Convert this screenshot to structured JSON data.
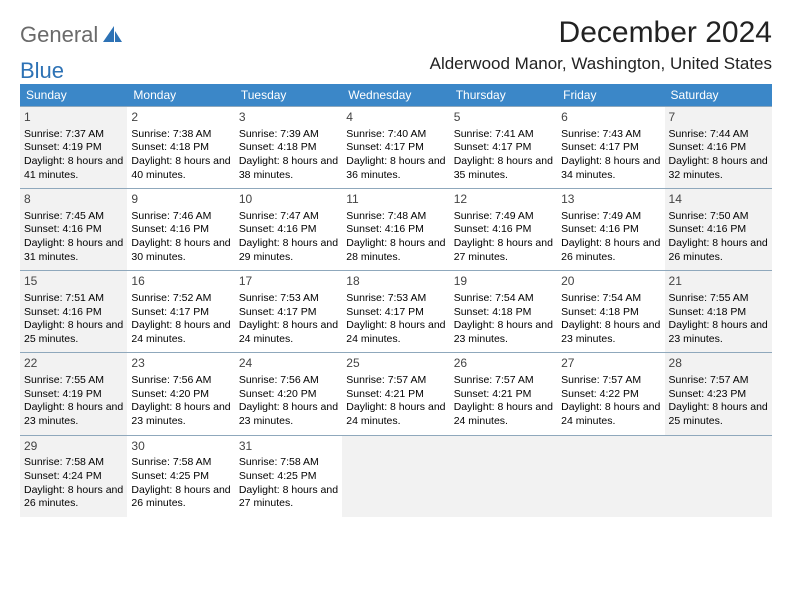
{
  "brand": {
    "word1": "General",
    "word2": "Blue",
    "accent_color": "#2d72b5",
    "gray_color": "#6a6a6a"
  },
  "header": {
    "month_title": "December 2024",
    "location": "Alderwood Manor, Washington, United States"
  },
  "day_headers": [
    "Sunday",
    "Monday",
    "Tuesday",
    "Wednesday",
    "Thursday",
    "Friday",
    "Saturday"
  ],
  "header_bg": "#3b87c8",
  "header_fg": "#ffffff",
  "cell_border": "#8fa8bc",
  "cell_shade": "#f2f2f2",
  "days": [
    {
      "n": 1,
      "sunrise": "7:37 AM",
      "sunset": "4:19 PM",
      "daylight": "8 hours and 41 minutes.",
      "shade": true
    },
    {
      "n": 2,
      "sunrise": "7:38 AM",
      "sunset": "4:18 PM",
      "daylight": "8 hours and 40 minutes.",
      "shade": false
    },
    {
      "n": 3,
      "sunrise": "7:39 AM",
      "sunset": "4:18 PM",
      "daylight": "8 hours and 38 minutes.",
      "shade": false
    },
    {
      "n": 4,
      "sunrise": "7:40 AM",
      "sunset": "4:17 PM",
      "daylight": "8 hours and 36 minutes.",
      "shade": false
    },
    {
      "n": 5,
      "sunrise": "7:41 AM",
      "sunset": "4:17 PM",
      "daylight": "8 hours and 35 minutes.",
      "shade": false
    },
    {
      "n": 6,
      "sunrise": "7:43 AM",
      "sunset": "4:17 PM",
      "daylight": "8 hours and 34 minutes.",
      "shade": false
    },
    {
      "n": 7,
      "sunrise": "7:44 AM",
      "sunset": "4:16 PM",
      "daylight": "8 hours and 32 minutes.",
      "shade": true
    },
    {
      "n": 8,
      "sunrise": "7:45 AM",
      "sunset": "4:16 PM",
      "daylight": "8 hours and 31 minutes.",
      "shade": true
    },
    {
      "n": 9,
      "sunrise": "7:46 AM",
      "sunset": "4:16 PM",
      "daylight": "8 hours and 30 minutes.",
      "shade": false
    },
    {
      "n": 10,
      "sunrise": "7:47 AM",
      "sunset": "4:16 PM",
      "daylight": "8 hours and 29 minutes.",
      "shade": false
    },
    {
      "n": 11,
      "sunrise": "7:48 AM",
      "sunset": "4:16 PM",
      "daylight": "8 hours and 28 minutes.",
      "shade": false
    },
    {
      "n": 12,
      "sunrise": "7:49 AM",
      "sunset": "4:16 PM",
      "daylight": "8 hours and 27 minutes.",
      "shade": false
    },
    {
      "n": 13,
      "sunrise": "7:49 AM",
      "sunset": "4:16 PM",
      "daylight": "8 hours and 26 minutes.",
      "shade": false
    },
    {
      "n": 14,
      "sunrise": "7:50 AM",
      "sunset": "4:16 PM",
      "daylight": "8 hours and 26 minutes.",
      "shade": true
    },
    {
      "n": 15,
      "sunrise": "7:51 AM",
      "sunset": "4:16 PM",
      "daylight": "8 hours and 25 minutes.",
      "shade": true
    },
    {
      "n": 16,
      "sunrise": "7:52 AM",
      "sunset": "4:17 PM",
      "daylight": "8 hours and 24 minutes.",
      "shade": false
    },
    {
      "n": 17,
      "sunrise": "7:53 AM",
      "sunset": "4:17 PM",
      "daylight": "8 hours and 24 minutes.",
      "shade": false
    },
    {
      "n": 18,
      "sunrise": "7:53 AM",
      "sunset": "4:17 PM",
      "daylight": "8 hours and 24 minutes.",
      "shade": false
    },
    {
      "n": 19,
      "sunrise": "7:54 AM",
      "sunset": "4:18 PM",
      "daylight": "8 hours and 23 minutes.",
      "shade": false
    },
    {
      "n": 20,
      "sunrise": "7:54 AM",
      "sunset": "4:18 PM",
      "daylight": "8 hours and 23 minutes.",
      "shade": false
    },
    {
      "n": 21,
      "sunrise": "7:55 AM",
      "sunset": "4:18 PM",
      "daylight": "8 hours and 23 minutes.",
      "shade": true
    },
    {
      "n": 22,
      "sunrise": "7:55 AM",
      "sunset": "4:19 PM",
      "daylight": "8 hours and 23 minutes.",
      "shade": true
    },
    {
      "n": 23,
      "sunrise": "7:56 AM",
      "sunset": "4:20 PM",
      "daylight": "8 hours and 23 minutes.",
      "shade": false
    },
    {
      "n": 24,
      "sunrise": "7:56 AM",
      "sunset": "4:20 PM",
      "daylight": "8 hours and 23 minutes.",
      "shade": false
    },
    {
      "n": 25,
      "sunrise": "7:57 AM",
      "sunset": "4:21 PM",
      "daylight": "8 hours and 24 minutes.",
      "shade": false
    },
    {
      "n": 26,
      "sunrise": "7:57 AM",
      "sunset": "4:21 PM",
      "daylight": "8 hours and 24 minutes.",
      "shade": false
    },
    {
      "n": 27,
      "sunrise": "7:57 AM",
      "sunset": "4:22 PM",
      "daylight": "8 hours and 24 minutes.",
      "shade": false
    },
    {
      "n": 28,
      "sunrise": "7:57 AM",
      "sunset": "4:23 PM",
      "daylight": "8 hours and 25 minutes.",
      "shade": true
    },
    {
      "n": 29,
      "sunrise": "7:58 AM",
      "sunset": "4:24 PM",
      "daylight": "8 hours and 26 minutes.",
      "shade": true
    },
    {
      "n": 30,
      "sunrise": "7:58 AM",
      "sunset": "4:25 PM",
      "daylight": "8 hours and 26 minutes.",
      "shade": false
    },
    {
      "n": 31,
      "sunrise": "7:58 AM",
      "sunset": "4:25 PM",
      "daylight": "8 hours and 27 minutes.",
      "shade": false
    }
  ],
  "labels": {
    "sunrise": "Sunrise: ",
    "sunset": "Sunset: ",
    "daylight": "Daylight: "
  }
}
